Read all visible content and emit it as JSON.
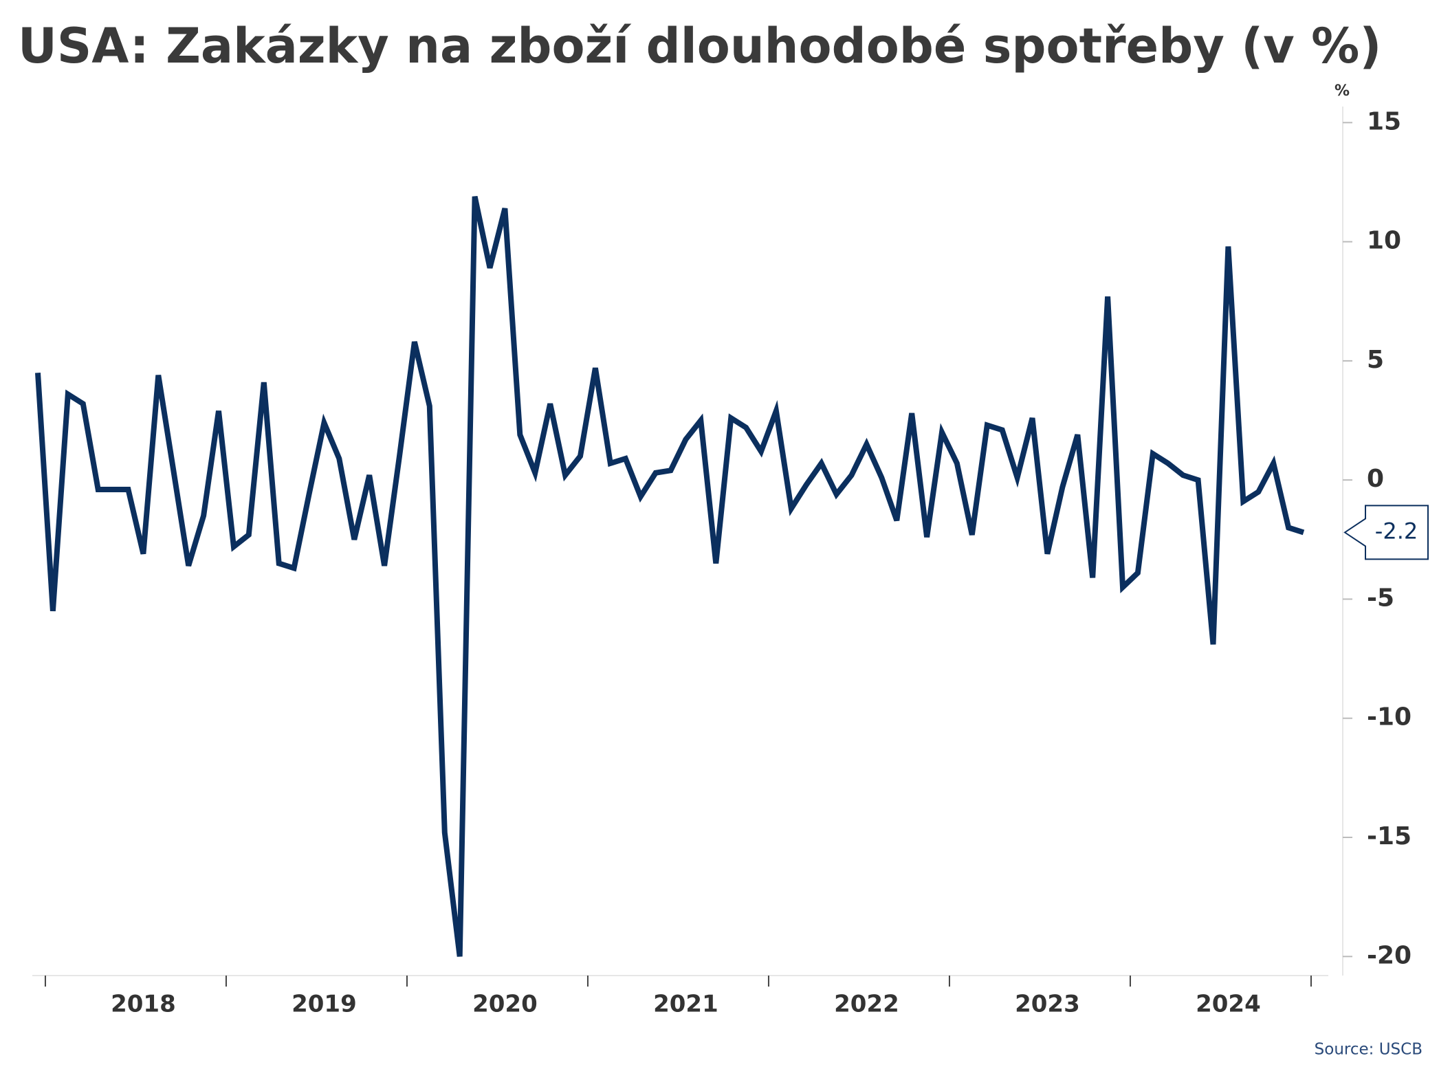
{
  "chart_data": {
    "type": "line",
    "title": "USA: Zakázky na zboží dlouhodobé spotřeby (v %)",
    "y_unit": "%",
    "source": "Source: USCB",
    "categories": [
      null,
      null,
      null,
      null,
      null,
      null,
      null,
      "2018",
      null,
      null,
      null,
      null,
      null,
      null,
      null,
      null,
      null,
      null,
      null,
      "2019",
      null,
      null,
      null,
      null,
      null,
      null,
      null,
      null,
      null,
      null,
      null,
      "2020",
      null,
      null,
      null,
      null,
      null,
      null,
      null,
      null,
      null,
      null,
      null,
      "2021",
      null,
      null,
      null,
      null,
      null,
      null,
      null,
      null,
      null,
      null,
      null,
      "2022",
      null,
      null,
      null,
      null,
      null,
      null,
      null,
      null,
      null,
      null,
      null,
      "2023",
      null,
      null,
      null,
      null,
      null,
      null,
      null,
      null,
      null,
      null,
      null,
      "2024",
      null,
      null,
      null,
      null,
      null
    ],
    "series": [
      {
        "name": "Zakázky",
        "color": "#0b2f5e",
        "values": [
          4.5,
          -5.5,
          3.6,
          3.2,
          -0.4,
          -0.4,
          -0.4,
          -3.1,
          4.4,
          0.4,
          -3.6,
          -1.5,
          2.9,
          -2.8,
          -2.3,
          4.1,
          -3.5,
          -3.7,
          -0.6,
          2.4,
          0.9,
          -2.5,
          0.2,
          -3.6,
          1.0,
          5.8,
          3.1,
          -14.8,
          -20.0,
          11.9,
          8.9,
          11.4,
          1.9,
          0.3,
          3.2,
          0.2,
          1.0,
          4.7,
          0.7,
          0.9,
          -0.7,
          0.3,
          0.4,
          1.7,
          2.5,
          -3.5,
          2.6,
          2.2,
          1.2,
          2.9,
          -1.2,
          -0.2,
          0.7,
          -0.6,
          0.2,
          1.5,
          0.1,
          -1.7,
          2.8,
          -2.4,
          2.0,
          0.7,
          -2.3,
          2.3,
          2.1,
          0.1,
          2.6,
          -3.1,
          -0.3,
          1.9,
          -4.1,
          7.7,
          -4.5,
          -3.9,
          1.1,
          0.7,
          0.2,
          0.0,
          -6.9,
          9.8,
          -0.9,
          -0.5,
          0.7,
          -2.0,
          -2.2
        ]
      }
    ],
    "ylim": [
      -20.8,
      15.5
    ],
    "yticks": [
      -20,
      -15,
      -10,
      -5,
      0,
      5,
      10,
      15
    ]
  }
}
